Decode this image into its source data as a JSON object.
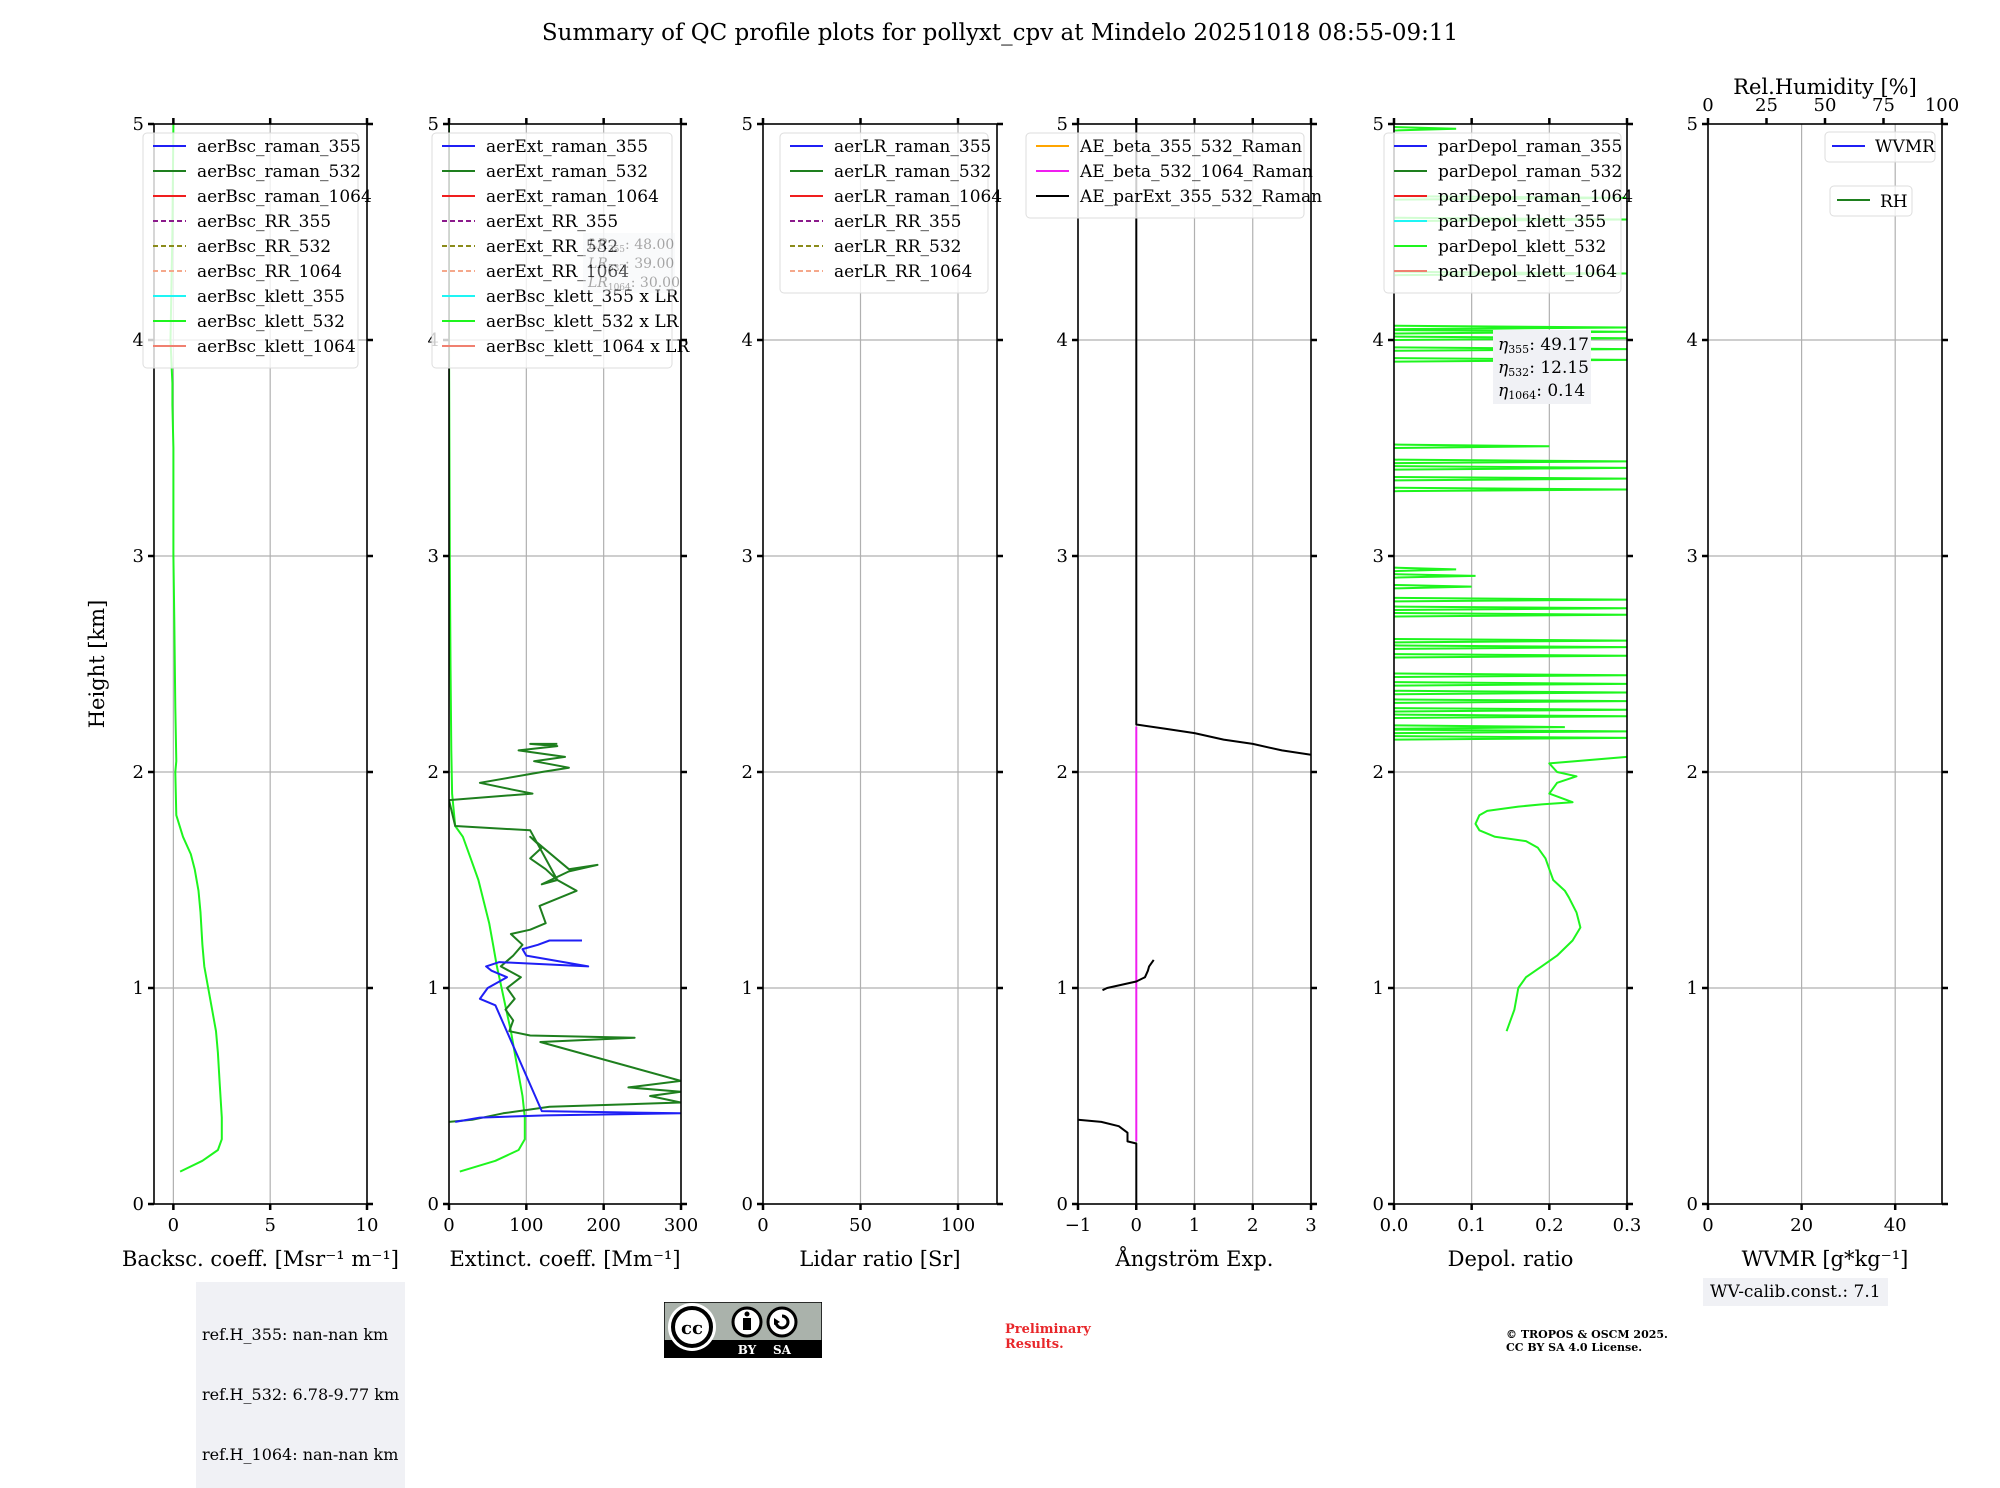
{
  "figure": {
    "title": "Summary of QC profile plots for pollyxt_cpv at Mindelo 20251018 08:55-09:11",
    "ylabel": "Height [km]",
    "ref_heights": [
      "ref.H_355: nan-nan km",
      "ref.H_532: 6.78-9.77 km",
      "ref.H_1064: nan-nan km"
    ],
    "wv_calib": "WV-calib.const.: 7.1",
    "preliminary": [
      "Preliminary",
      "Results."
    ],
    "copyright": [
      "© TROPOS & OSCM 2025.",
      "CC BY SA 4.0 License."
    ],
    "license_badge": {
      "icon": "cc-by-sa-icon",
      "labels": [
        "BY",
        "SA"
      ]
    }
  },
  "colors": {
    "blue": "#1f1ff5",
    "green": "#1e7f1e",
    "red": "#f01e1e",
    "purple": "#8b1a8b",
    "olive": "#8b8b1a",
    "salmon_light": "#f5a88b",
    "cyan": "#1ef5f5",
    "lime": "#1ef51e",
    "salmon": "#f08070",
    "orange": "#ffa500",
    "magenta": "#f01ef0",
    "black": "#000000",
    "grid": "#b0b0b0",
    "infobox_bg": "#f0f1f5"
  },
  "chart_data": [
    {
      "type": "line",
      "id": "backscatter",
      "xlabel": "Backsc. coeff. [Msr⁻¹ m⁻¹]",
      "ylabel": "Height [km]",
      "xlim": [
        -1,
        10
      ],
      "ylim": [
        0,
        5
      ],
      "xticks": [
        0,
        5,
        10
      ],
      "yticks": [
        0,
        1,
        2,
        3,
        4,
        5
      ],
      "grid": true,
      "legend": "top-right",
      "legend_entries": [
        {
          "label": "aerBsc_raman_355",
          "color": "#1f1ff5",
          "dash": false
        },
        {
          "label": "aerBsc_raman_532",
          "color": "#1e7f1e",
          "dash": false
        },
        {
          "label": "aerBsc_raman_1064",
          "color": "#f01e1e",
          "dash": false
        },
        {
          "label": "aerBsc_RR_355",
          "color": "#8b1a8b",
          "dash": true
        },
        {
          "label": "aerBsc_RR_532",
          "color": "#8b8b1a",
          "dash": true
        },
        {
          "label": "aerBsc_RR_1064",
          "color": "#f5a88b",
          "dash": true
        },
        {
          "label": "aerBsc_klett_355",
          "color": "#1ef5f5",
          "dash": false
        },
        {
          "label": "aerBsc_klett_532",
          "color": "#1ef51e",
          "dash": false
        },
        {
          "label": "aerBsc_klett_1064",
          "color": "#f08070",
          "dash": false
        }
      ],
      "series": [
        {
          "name": "aerBsc_klett_532",
          "color": "#1ef51e",
          "x": [
            0.35,
            1.5,
            2.3,
            2.5,
            2.5,
            2.4,
            2.3,
            2.2,
            2.0,
            1.8,
            1.6,
            1.5,
            1.4,
            1.3,
            1.1,
            0.9,
            0.5,
            0.15,
            0.1,
            0.15,
            0.1,
            0.05,
            0.0,
            0.0,
            -0.05,
            -0.05,
            -0.1,
            -0.15,
            -0.05,
            0.0
          ],
          "y": [
            0.15,
            0.2,
            0.25,
            0.3,
            0.4,
            0.55,
            0.7,
            0.8,
            0.9,
            1.0,
            1.1,
            1.2,
            1.35,
            1.45,
            1.55,
            1.62,
            1.7,
            1.8,
            2.0,
            2.05,
            2.3,
            2.7,
            3.0,
            3.5,
            3.7,
            3.8,
            3.9,
            4.0,
            4.5,
            5.0
          ]
        }
      ],
      "annotation": null
    },
    {
      "type": "line",
      "id": "extinction",
      "xlabel": "Extinct. coeff. [Mm⁻¹]",
      "xlim": [
        0,
        300
      ],
      "ylim": [
        0,
        5
      ],
      "xticks": [
        0,
        100,
        200,
        300
      ],
      "yticks": [
        0,
        1,
        2,
        3,
        4,
        5
      ],
      "grid": true,
      "legend": "top-right",
      "legend_entries": [
        {
          "label": "aerExt_raman_355",
          "color": "#1f1ff5",
          "dash": false
        },
        {
          "label": "aerExt_raman_532",
          "color": "#1e7f1e",
          "dash": false
        },
        {
          "label": "aerExt_raman_1064",
          "color": "#f01e1e",
          "dash": false
        },
        {
          "label": "aerExt_RR_355",
          "color": "#8b1a8b",
          "dash": true
        },
        {
          "label": "aerExt_RR_532",
          "color": "#8b8b1a",
          "dash": true
        },
        {
          "label": "aerExt_RR_1064",
          "color": "#f5a88b",
          "dash": true
        },
        {
          "label": "aerBsc_klett_355 x LR",
          "color": "#1ef5f5",
          "dash": false
        },
        {
          "label": "aerBsc_klett_532 x LR",
          "color": "#1ef51e",
          "dash": false
        },
        {
          "label": "aerBsc_klett_1064 x LR",
          "color": "#f08070",
          "dash": false
        }
      ],
      "annotation": [
        "LR355: 48.00",
        "LR532: 39.00",
        "LR1064: 30.00"
      ],
      "series": [
        {
          "name": "aerBsc_klett_532 x LR",
          "color": "#1ef51e",
          "x": [
            14,
            60,
            90,
            98,
            98,
            95,
            90,
            85,
            80,
            74,
            68,
            62,
            57,
            52,
            45,
            38,
            28,
            18,
            8,
            4,
            3,
            2,
            1,
            0,
            0
          ],
          "y": [
            0.15,
            0.2,
            0.25,
            0.3,
            0.4,
            0.5,
            0.6,
            0.7,
            0.8,
            0.9,
            1.0,
            1.1,
            1.2,
            1.3,
            1.4,
            1.5,
            1.6,
            1.7,
            1.75,
            1.9,
            2.1,
            2.5,
            3.0,
            4.0,
            5.0
          ]
        },
        {
          "name": "aerExt_raman_532",
          "color": "#1e7f1e",
          "x": [
            0,
            30,
            70,
            130,
            300,
            260,
            300,
            232,
            300,
            118,
            240,
            105,
            78,
            83,
            73,
            85,
            75,
            93,
            67,
            83,
            95,
            80,
            105,
            125,
            117,
            165,
            140,
            125,
            105,
            120,
            105,
            155,
            192,
            155,
            120,
            140,
            105,
            8,
            0,
            108,
            80,
            40,
            120,
            155,
            110,
            150,
            90,
            140,
            105,
            140
          ],
          "y": [
            0.38,
            0.39,
            0.42,
            0.45,
            0.47,
            0.5,
            0.52,
            0.54,
            0.57,
            0.75,
            0.77,
            0.78,
            0.8,
            0.85,
            0.9,
            0.95,
            1.0,
            1.05,
            1.1,
            1.15,
            1.2,
            1.25,
            1.27,
            1.3,
            1.38,
            1.45,
            1.5,
            1.55,
            1.6,
            1.65,
            1.7,
            1.55,
            1.57,
            1.54,
            1.48,
            1.5,
            1.73,
            1.75,
            1.87,
            1.9,
            1.92,
            1.95,
            2.0,
            2.02,
            2.05,
            2.07,
            2.1,
            2.12,
            2.13,
            2.13
          ]
        },
        {
          "name": "aerExt_raman_355",
          "color": "#1f1ff5",
          "x": [
            8,
            40,
            125,
            300,
            120,
            60,
            40,
            50,
            75,
            55,
            48,
            65,
            180,
            100,
            95,
            115,
            130,
            172
          ],
          "y": [
            0.38,
            0.4,
            0.41,
            0.42,
            0.43,
            0.92,
            0.95,
            1.0,
            1.05,
            1.08,
            1.1,
            1.12,
            1.1,
            1.15,
            1.18,
            1.2,
            1.22,
            1.22
          ]
        }
      ]
    },
    {
      "type": "line",
      "id": "lidar-ratio",
      "xlabel": "Lidar ratio [Sr]",
      "xlim": [
        0,
        120
      ],
      "ylim": [
        0,
        5
      ],
      "xticks": [
        0,
        50,
        100
      ],
      "yticks": [
        0,
        1,
        2,
        3,
        4,
        5
      ],
      "grid": true,
      "legend": "top-right",
      "legend_entries": [
        {
          "label": "aerLR_raman_355",
          "color": "#1f1ff5",
          "dash": false
        },
        {
          "label": "aerLR_raman_532",
          "color": "#1e7f1e",
          "dash": false
        },
        {
          "label": "aerLR_raman_1064",
          "color": "#f01e1e",
          "dash": false
        },
        {
          "label": "aerLR_RR_355",
          "color": "#8b1a8b",
          "dash": true
        },
        {
          "label": "aerLR_RR_532",
          "color": "#8b8b1a",
          "dash": true
        },
        {
          "label": "aerLR_RR_1064",
          "color": "#f5a88b",
          "dash": true
        }
      ],
      "series": [],
      "annotation": null
    },
    {
      "type": "line",
      "id": "angstrom",
      "xlabel": "Ångström Exp.",
      "xlim": [
        -1,
        3
      ],
      "ylim": [
        0,
        5
      ],
      "xticks": [
        -1,
        0,
        1,
        2,
        3
      ],
      "xticklabels": [
        "−1",
        "0",
        "1",
        "2",
        "3"
      ],
      "yticks": [
        0,
        1,
        2,
        3,
        4,
        5
      ],
      "grid": true,
      "legend": "top-right",
      "legend_entries": [
        {
          "label": "AE_beta_355_532_Raman",
          "color": "#ffa500",
          "dash": false
        },
        {
          "label": "AE_beta_532_1064_Raman",
          "color": "#f01ef0",
          "dash": false
        },
        {
          "label": "AE_parExt_355_532_Raman",
          "color": "#000000",
          "dash": false
        }
      ],
      "series": [
        {
          "name": "AE_beta_532_1064_Raman",
          "color": "#f01ef0",
          "x": [
            0,
            0
          ],
          "y": [
            0.29,
            2.21
          ]
        },
        {
          "name": "AE_parExt_355_532_Raman (low)",
          "color": "#000000",
          "x": [
            0,
            0,
            -0.15,
            -0.15,
            -0.3,
            -0.6,
            -1.0
          ],
          "y": [
            0.0,
            0.28,
            0.29,
            0.33,
            0.36,
            0.38,
            0.39
          ]
        },
        {
          "name": "AE_parExt_355_532_Raman (mid)",
          "color": "#000000",
          "x": [
            -0.58,
            -0.5,
            0.0,
            0.15,
            0.2,
            0.22,
            0.3
          ],
          "y": [
            0.99,
            1.0,
            1.03,
            1.05,
            1.08,
            1.1,
            1.13
          ]
        },
        {
          "name": "AE_parExt_355_532_Raman (high)",
          "color": "#000000",
          "x": [
            3.0,
            2.5,
            2.0,
            1.5,
            1.0,
            0.5,
            0.0,
            0.0
          ],
          "y": [
            2.08,
            2.1,
            2.13,
            2.15,
            2.18,
            2.2,
            2.22,
            5.0
          ]
        }
      ],
      "annotation": null
    },
    {
      "type": "line",
      "id": "depol",
      "xlabel": "Depol. ratio",
      "xlim": [
        0,
        0.3
      ],
      "ylim": [
        0,
        5
      ],
      "xticks": [
        0,
        0.1,
        0.2,
        0.3
      ],
      "xticklabels": [
        "0.0",
        "0.1",
        "0.2",
        "0.3"
      ],
      "yticks": [
        0,
        1,
        2,
        3,
        4,
        5
      ],
      "grid": true,
      "legend": "top-right",
      "legend_entries": [
        {
          "label": "parDepol_raman_355",
          "color": "#1f1ff5",
          "dash": false
        },
        {
          "label": "parDepol_raman_532",
          "color": "#1e7f1e",
          "dash": false
        },
        {
          "label": "parDepol_raman_1064",
          "color": "#f01e1e",
          "dash": false
        },
        {
          "label": "parDepol_klett_355",
          "color": "#1ef5f5",
          "dash": false
        },
        {
          "label": "parDepol_klett_532",
          "color": "#1ef51e",
          "dash": false
        },
        {
          "label": "parDepol_klett_1064",
          "color": "#f08070",
          "dash": false
        }
      ],
      "annotation": [
        "η355: 49.17",
        "η532: 12.15",
        "η1064: 0.14"
      ],
      "series": [
        {
          "name": "parDepol_klett_532",
          "color": "#1ef51e",
          "x": [
            0.145,
            0.155,
            0.16,
            0.17,
            0.19,
            0.21,
            0.23,
            0.24,
            0.235,
            0.225,
            0.22,
            0.205,
            0.2,
            0.195,
            0.185,
            0.17,
            0.13,
            0.11,
            0.105,
            0.11,
            0.12,
            0.16,
            0.19,
            0.23,
            0.2,
            0.21,
            0.235,
            0.21,
            0.2,
            0.3
          ],
          "y": [
            0.8,
            0.9,
            1.0,
            1.05,
            1.1,
            1.15,
            1.22,
            1.28,
            1.35,
            1.42,
            1.45,
            1.5,
            1.55,
            1.6,
            1.65,
            1.68,
            1.7,
            1.73,
            1.76,
            1.8,
            1.82,
            1.84,
            1.85,
            1.86,
            1.9,
            1.95,
            1.98,
            2.0,
            2.04,
            2.07
          ]
        },
        {
          "name": "parDepol_klett_532 spikes",
          "color": "#1ef51e",
          "spikes": [
            [
              2.15,
              0.3
            ],
            [
              2.18,
              0.3
            ],
            [
              2.2,
              0.22
            ],
            [
              2.25,
              0.3
            ],
            [
              2.28,
              0.3
            ],
            [
              2.32,
              0.3
            ],
            [
              2.36,
              0.3
            ],
            [
              2.4,
              0.3
            ],
            [
              2.44,
              0.3
            ],
            [
              2.53,
              0.3
            ],
            [
              2.57,
              0.3
            ],
            [
              2.6,
              0.3
            ],
            [
              2.72,
              0.3
            ],
            [
              2.75,
              0.3
            ],
            [
              2.79,
              0.3
            ],
            [
              2.85,
              0.1
            ],
            [
              2.9,
              0.105
            ],
            [
              2.93,
              0.08
            ],
            [
              3.3,
              0.3
            ],
            [
              3.35,
              0.3
            ],
            [
              3.4,
              0.3
            ],
            [
              3.43,
              0.3
            ],
            [
              3.5,
              0.2
            ],
            [
              3.9,
              0.3
            ],
            [
              3.95,
              0.3
            ],
            [
              4.0,
              0.3
            ],
            [
              4.03,
              0.3
            ],
            [
              4.05,
              0.3
            ],
            [
              4.3,
              0.3
            ],
            [
              4.55,
              0.3
            ],
            [
              4.65,
              0.3
            ],
            [
              4.97,
              0.08
            ]
          ]
        }
      ]
    },
    {
      "type": "line",
      "id": "wvmr-rh",
      "xlabel": "WVMR [g*kg⁻¹]",
      "xlim": [
        0,
        50
      ],
      "ylim": [
        0,
        5
      ],
      "xticks": [
        0,
        20,
        40
      ],
      "yticks": [
        0,
        1,
        2,
        3,
        4,
        5
      ],
      "top_xlabel": "Rel.Humidity [%]",
      "top_xlim": [
        0,
        100
      ],
      "top_xticks": [
        0,
        25,
        50,
        75,
        100
      ],
      "grid": true,
      "legend": "top-right",
      "legend_entries": [
        {
          "label": "WVMR",
          "color": "#1f1ff5",
          "dash": false
        },
        {
          "label": "RH",
          "color": "#1e7f1e",
          "dash": false
        }
      ],
      "series": [],
      "annotation": null
    }
  ]
}
